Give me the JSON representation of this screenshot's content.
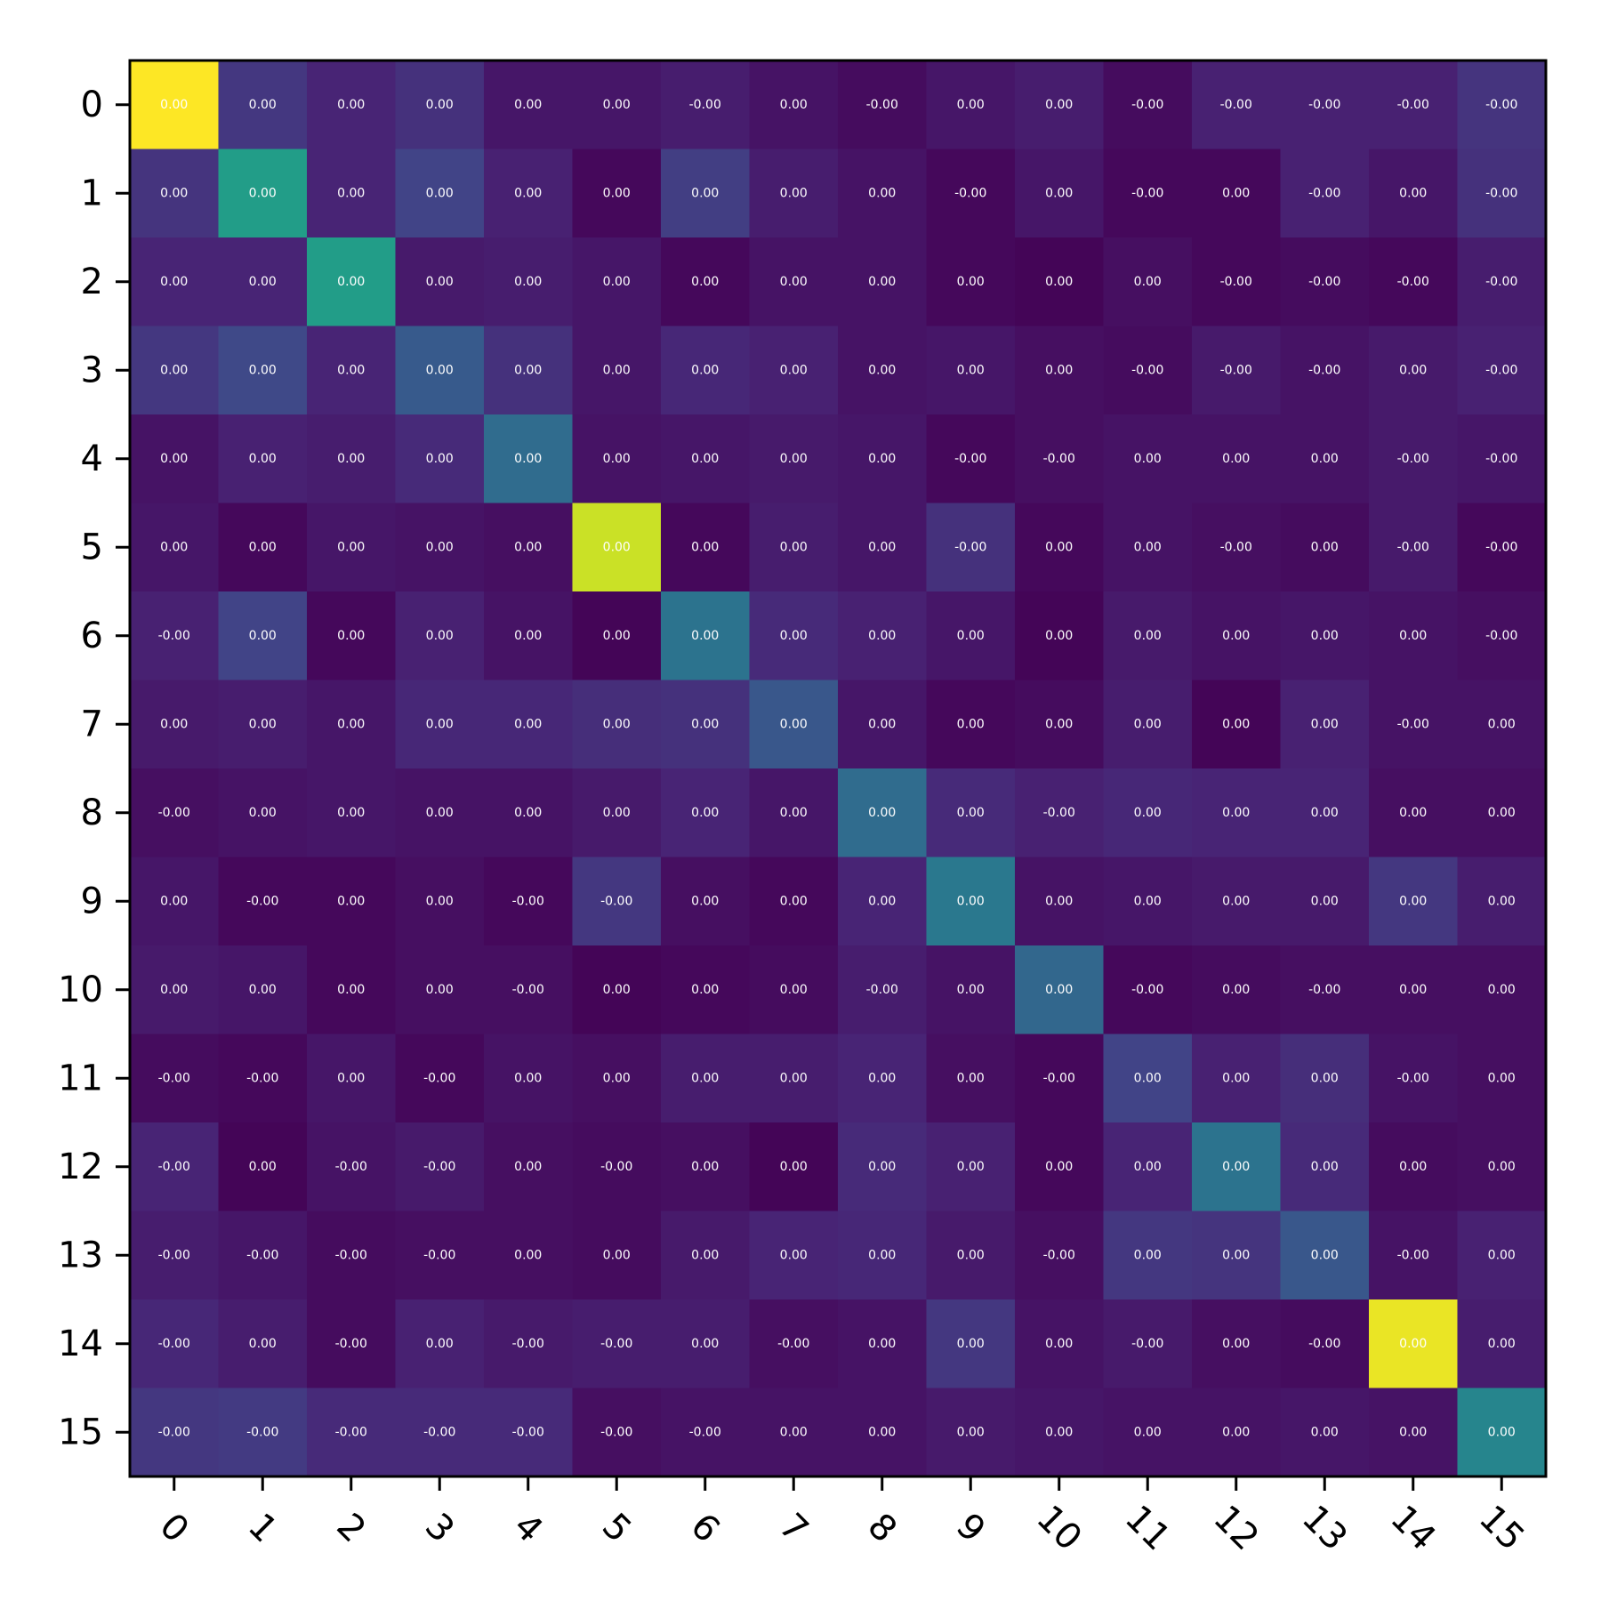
{
  "chart_data": {
    "type": "heatmap",
    "title": "",
    "xlabel": "",
    "ylabel": "",
    "colormap": "viridis",
    "grid": false,
    "legend": "none",
    "x_tick_labels": [
      "0",
      "1",
      "2",
      "3",
      "4",
      "5",
      "6",
      "7",
      "8",
      "9",
      "10",
      "11",
      "12",
      "13",
      "14",
      "15"
    ],
    "y_tick_labels": [
      "0",
      "1",
      "2",
      "3",
      "4",
      "5",
      "6",
      "7",
      "8",
      "9",
      "10",
      "11",
      "12",
      "13",
      "14",
      "15"
    ],
    "x_tick_rotation_deg": 45,
    "color_intensity": [
      [
        1.0,
        0.16,
        0.1,
        0.14,
        0.06,
        0.06,
        0.08,
        0.05,
        0.03,
        0.06,
        0.08,
        0.03,
        0.09,
        0.09,
        0.09,
        0.15
      ],
      [
        0.15,
        0.55,
        0.1,
        0.2,
        0.09,
        0.02,
        0.18,
        0.08,
        0.05,
        0.02,
        0.06,
        0.02,
        0.02,
        0.09,
        0.06,
        0.14
      ],
      [
        0.1,
        0.1,
        0.55,
        0.07,
        0.08,
        0.06,
        0.02,
        0.05,
        0.05,
        0.02,
        0.01,
        0.04,
        0.02,
        0.03,
        0.02,
        0.08
      ],
      [
        0.16,
        0.22,
        0.1,
        0.28,
        0.14,
        0.06,
        0.11,
        0.09,
        0.05,
        0.06,
        0.04,
        0.03,
        0.07,
        0.05,
        0.07,
        0.09
      ],
      [
        0.05,
        0.09,
        0.08,
        0.12,
        0.35,
        0.05,
        0.06,
        0.07,
        0.06,
        0.02,
        0.04,
        0.05,
        0.05,
        0.05,
        0.07,
        0.06
      ],
      [
        0.06,
        0.02,
        0.06,
        0.05,
        0.04,
        0.92,
        0.02,
        0.08,
        0.06,
        0.14,
        0.02,
        0.05,
        0.04,
        0.03,
        0.07,
        0.02
      ],
      [
        0.09,
        0.2,
        0.02,
        0.09,
        0.05,
        0.01,
        0.38,
        0.12,
        0.09,
        0.06,
        0.01,
        0.07,
        0.05,
        0.06,
        0.05,
        0.04
      ],
      [
        0.07,
        0.08,
        0.06,
        0.11,
        0.11,
        0.13,
        0.14,
        0.27,
        0.06,
        0.02,
        0.03,
        0.08,
        0.01,
        0.09,
        0.05,
        0.05
      ],
      [
        0.04,
        0.05,
        0.06,
        0.05,
        0.05,
        0.07,
        0.1,
        0.06,
        0.35,
        0.12,
        0.09,
        0.11,
        0.1,
        0.1,
        0.04,
        0.04
      ],
      [
        0.06,
        0.02,
        0.02,
        0.04,
        0.02,
        0.16,
        0.04,
        0.02,
        0.1,
        0.4,
        0.05,
        0.06,
        0.07,
        0.07,
        0.16,
        0.08
      ],
      [
        0.07,
        0.06,
        0.02,
        0.04,
        0.04,
        0.01,
        0.02,
        0.03,
        0.08,
        0.05,
        0.33,
        0.02,
        0.03,
        0.04,
        0.04,
        0.04
      ],
      [
        0.03,
        0.02,
        0.06,
        0.02,
        0.05,
        0.04,
        0.08,
        0.08,
        0.1,
        0.04,
        0.02,
        0.2,
        0.09,
        0.13,
        0.05,
        0.04
      ],
      [
        0.1,
        0.01,
        0.05,
        0.07,
        0.04,
        0.03,
        0.04,
        0.01,
        0.12,
        0.09,
        0.02,
        0.1,
        0.38,
        0.12,
        0.03,
        0.04
      ],
      [
        0.08,
        0.06,
        0.03,
        0.04,
        0.04,
        0.03,
        0.07,
        0.1,
        0.11,
        0.07,
        0.04,
        0.16,
        0.15,
        0.27,
        0.05,
        0.09
      ],
      [
        0.11,
        0.08,
        0.03,
        0.09,
        0.07,
        0.08,
        0.08,
        0.04,
        0.05,
        0.16,
        0.05,
        0.07,
        0.04,
        0.03,
        0.97,
        0.08
      ],
      [
        0.16,
        0.17,
        0.12,
        0.12,
        0.12,
        0.04,
        0.05,
        0.05,
        0.05,
        0.07,
        0.06,
        0.05,
        0.05,
        0.06,
        0.05,
        0.45
      ]
    ],
    "cell_labels": [
      [
        "0.00",
        "0.00",
        "0.00",
        "0.00",
        "0.00",
        "0.00",
        "-0.00",
        "0.00",
        "-0.00",
        "0.00",
        "0.00",
        "-0.00",
        "-0.00",
        "-0.00",
        "-0.00",
        "-0.00"
      ],
      [
        "0.00",
        "0.00",
        "0.00",
        "0.00",
        "0.00",
        "0.00",
        "0.00",
        "0.00",
        "0.00",
        "-0.00",
        "0.00",
        "-0.00",
        "0.00",
        "-0.00",
        "0.00",
        "-0.00"
      ],
      [
        "0.00",
        "0.00",
        "0.00",
        "0.00",
        "0.00",
        "0.00",
        "0.00",
        "0.00",
        "0.00",
        "0.00",
        "0.00",
        "0.00",
        "-0.00",
        "-0.00",
        "-0.00",
        "-0.00"
      ],
      [
        "0.00",
        "0.00",
        "0.00",
        "0.00",
        "0.00",
        "0.00",
        "0.00",
        "0.00",
        "0.00",
        "0.00",
        "0.00",
        "-0.00",
        "-0.00",
        "-0.00",
        "0.00",
        "-0.00"
      ],
      [
        "0.00",
        "0.00",
        "0.00",
        "0.00",
        "0.00",
        "0.00",
        "0.00",
        "0.00",
        "0.00",
        "-0.00",
        "-0.00",
        "0.00",
        "0.00",
        "0.00",
        "-0.00",
        "-0.00"
      ],
      [
        "0.00",
        "0.00",
        "0.00",
        "0.00",
        "0.00",
        "0.00",
        "0.00",
        "0.00",
        "0.00",
        "-0.00",
        "0.00",
        "0.00",
        "-0.00",
        "0.00",
        "-0.00",
        "-0.00"
      ],
      [
        "-0.00",
        "0.00",
        "0.00",
        "0.00",
        "0.00",
        "0.00",
        "0.00",
        "0.00",
        "0.00",
        "0.00",
        "0.00",
        "0.00",
        "0.00",
        "0.00",
        "0.00",
        "-0.00"
      ],
      [
        "0.00",
        "0.00",
        "0.00",
        "0.00",
        "0.00",
        "0.00",
        "0.00",
        "0.00",
        "0.00",
        "0.00",
        "0.00",
        "0.00",
        "0.00",
        "0.00",
        "-0.00",
        "0.00"
      ],
      [
        "-0.00",
        "0.00",
        "0.00",
        "0.00",
        "0.00",
        "0.00",
        "0.00",
        "0.00",
        "0.00",
        "0.00",
        "-0.00",
        "0.00",
        "0.00",
        "0.00",
        "0.00",
        "0.00"
      ],
      [
        "0.00",
        "-0.00",
        "0.00",
        "0.00",
        "-0.00",
        "-0.00",
        "0.00",
        "0.00",
        "0.00",
        "0.00",
        "0.00",
        "0.00",
        "0.00",
        "0.00",
        "0.00",
        "0.00"
      ],
      [
        "0.00",
        "0.00",
        "0.00",
        "0.00",
        "-0.00",
        "0.00",
        "0.00",
        "0.00",
        "-0.00",
        "0.00",
        "0.00",
        "-0.00",
        "0.00",
        "-0.00",
        "0.00",
        "0.00"
      ],
      [
        "-0.00",
        "-0.00",
        "0.00",
        "-0.00",
        "0.00",
        "0.00",
        "0.00",
        "0.00",
        "0.00",
        "0.00",
        "-0.00",
        "0.00",
        "0.00",
        "0.00",
        "-0.00",
        "0.00"
      ],
      [
        "-0.00",
        "0.00",
        "-0.00",
        "-0.00",
        "0.00",
        "-0.00",
        "0.00",
        "0.00",
        "0.00",
        "0.00",
        "0.00",
        "0.00",
        "0.00",
        "0.00",
        "0.00",
        "0.00"
      ],
      [
        "-0.00",
        "-0.00",
        "-0.00",
        "-0.00",
        "0.00",
        "0.00",
        "0.00",
        "0.00",
        "0.00",
        "0.00",
        "-0.00",
        "0.00",
        "0.00",
        "0.00",
        "-0.00",
        "0.00"
      ],
      [
        "-0.00",
        "0.00",
        "-0.00",
        "0.00",
        "-0.00",
        "-0.00",
        "0.00",
        "-0.00",
        "0.00",
        "0.00",
        "0.00",
        "-0.00",
        "0.00",
        "-0.00",
        "0.00",
        "0.00"
      ],
      [
        "-0.00",
        "-0.00",
        "-0.00",
        "-0.00",
        "-0.00",
        "-0.00",
        "-0.00",
        "0.00",
        "0.00",
        "0.00",
        "0.00",
        "0.00",
        "0.00",
        "0.00",
        "0.00",
        "0.00"
      ]
    ]
  }
}
